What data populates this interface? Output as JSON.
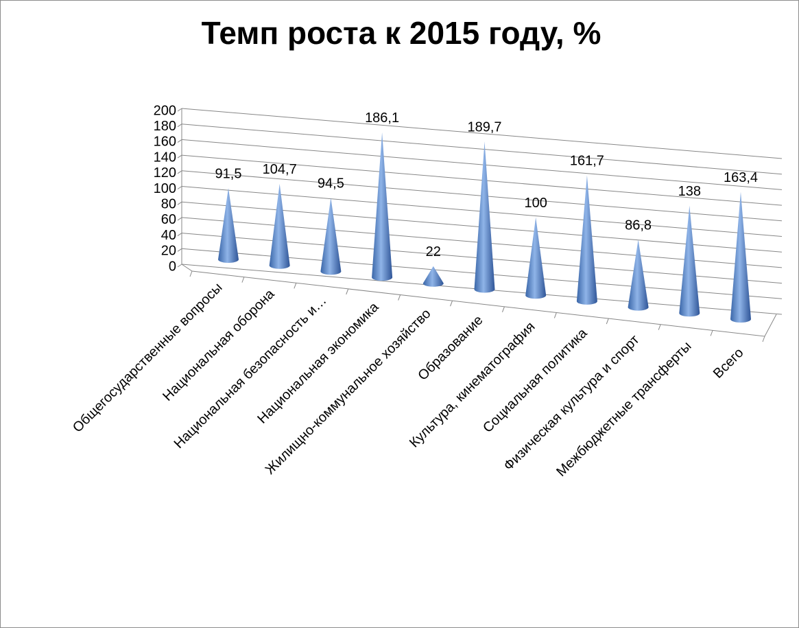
{
  "chart_data": {
    "type": "cone",
    "title": "Темп роста к 2015 году, %",
    "categories": [
      "Общегосударственные вопросы",
      "Национальная оборона",
      "Национальная безопасность и…",
      "Национальная экономика",
      "Жилищно-коммунальное хозяйство",
      "Образование",
      "Культура, кинематография",
      "Социальная политика",
      "Физическая культура и спорт",
      "Межбюджетные трансферты",
      "Всего"
    ],
    "values": [
      91.5,
      104.7,
      94.5,
      186.1,
      22,
      189.7,
      100,
      161.7,
      86.8,
      138,
      163.4
    ],
    "value_labels": [
      "91,5",
      "104,7",
      "94,5",
      "186,1",
      "22",
      "189,7",
      "100",
      "161,7",
      "86,8",
      "138",
      "163,4"
    ],
    "color": "#4f81bd",
    "ylim": [
      0,
      200
    ],
    "yticks": [
      0,
      20,
      40,
      60,
      80,
      100,
      120,
      140,
      160,
      180,
      200
    ],
    "grid": true
  }
}
